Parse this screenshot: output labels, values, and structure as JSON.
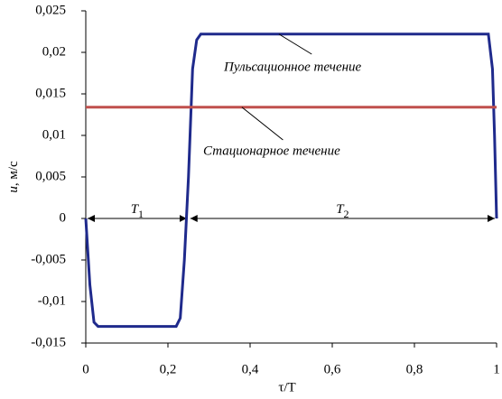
{
  "chart_data": {
    "type": "line",
    "x_label": "τ/T",
    "y_label": {
      "symbol": "u",
      "unit": ", м/с"
    },
    "xlim": [
      0,
      1
    ],
    "xticks": [
      0,
      {
        "value": 0.2,
        "label": "0,2"
      },
      {
        "value": 0.4,
        "label": "0,4"
      },
      {
        "value": 0.6,
        "label": "0,6"
      },
      {
        "value": 0.8,
        "label": "0,8"
      },
      1
    ],
    "ylim": [
      -0.015,
      0.025
    ],
    "yticks": [
      {
        "value": -0.015,
        "label": "-0,015"
      },
      {
        "value": -0.01,
        "label": "-0,01"
      },
      {
        "value": -0.005,
        "label": "-0,005"
      },
      0,
      {
        "value": 0.005,
        "label": "0,005"
      },
      {
        "value": 0.01,
        "label": "0,01"
      },
      {
        "value": 0.015,
        "label": "0,015"
      },
      {
        "value": 0.02,
        "label": "0,02"
      },
      {
        "value": 0.025,
        "label": "0,025"
      }
    ],
    "series": [
      {
        "name": "Пульсационное течение",
        "color": "#1f2a8c",
        "x": [
          0,
          0.01,
          0.02,
          0.03,
          0.22,
          0.23,
          0.24,
          0.25,
          0.26,
          0.27,
          0.28,
          0.98,
          0.99,
          0.995,
          1
        ],
        "values": [
          0,
          -0.008,
          -0.0125,
          -0.013,
          -0.013,
          -0.012,
          -0.005,
          0.005,
          0.018,
          0.0215,
          0.0222,
          0.0222,
          0.018,
          0.01,
          0
        ]
      },
      {
        "name": "Стационарное течение",
        "color": "#c0504d",
        "x": [
          0,
          1
        ],
        "values": [
          0.0134,
          0.0134
        ]
      }
    ],
    "intervals": [
      {
        "label": "T",
        "sub": "1",
        "from": 0,
        "to": 0.25
      },
      {
        "label": "T",
        "sub": "2",
        "from": 0.25,
        "to": 1
      }
    ]
  }
}
